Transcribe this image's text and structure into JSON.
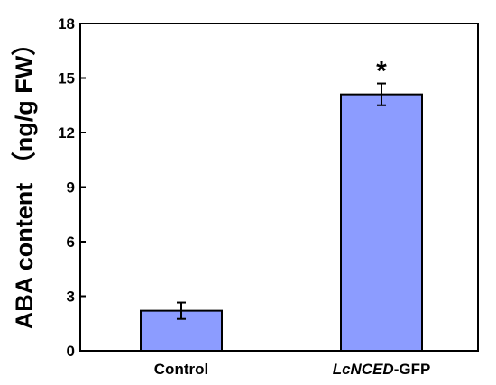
{
  "chart_data": {
    "type": "bar",
    "categories": [
      {
        "italic": "",
        "rest": "Control"
      },
      {
        "italic": "LcNCED",
        "rest": "-GFP"
      }
    ],
    "values": [
      2.2,
      14.1
    ],
    "errors": [
      0.45,
      0.6
    ],
    "annotations": [
      "",
      "*"
    ],
    "ylabel": "ABA content （ng/g FW）",
    "ylim": [
      0,
      18
    ],
    "yticks": [
      0,
      3,
      6,
      9,
      12,
      15,
      18
    ],
    "grid": false,
    "legend": "none",
    "colors": {
      "bar_fill": "#8c9cff",
      "bar_stroke": "#000000",
      "axis": "#000000"
    }
  }
}
